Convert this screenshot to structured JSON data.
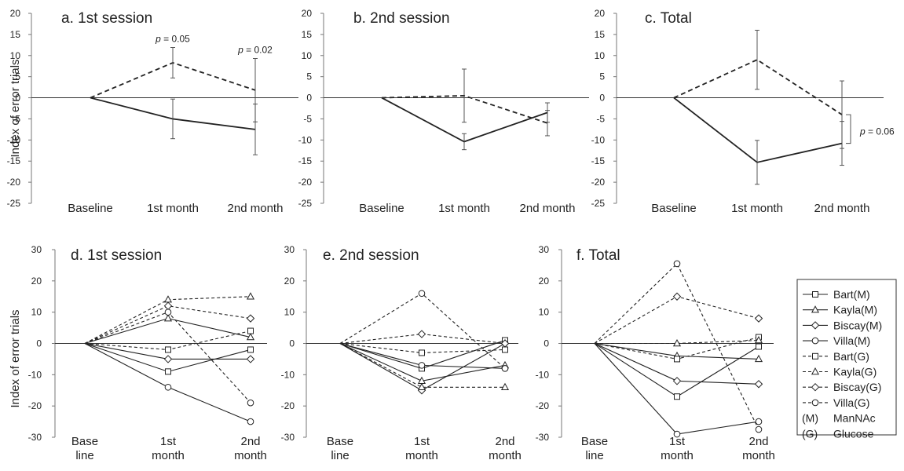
{
  "figure": {
    "ylabel": "Index of error trials",
    "legend": {
      "entries": [
        {
          "label": "Bart(M)",
          "marker": "square",
          "dash": false
        },
        {
          "label": "Kayla(M)",
          "marker": "triangle",
          "dash": false
        },
        {
          "label": "Biscay(M)",
          "marker": "diamond",
          "dash": false
        },
        {
          "label": "Villa(M)",
          "marker": "circle",
          "dash": false
        },
        {
          "label": "Bart(G)",
          "marker": "square",
          "dash": true
        },
        {
          "label": "Kayla(G)",
          "marker": "triangle",
          "dash": true
        },
        {
          "label": "Biscay(G)",
          "marker": "diamond",
          "dash": true
        },
        {
          "label": "Villa(G)",
          "marker": "circle",
          "dash": true
        }
      ],
      "notes": [
        {
          "code": "(M)",
          "text": "ManNAc"
        },
        {
          "code": "(G)",
          "text": "Glucose"
        }
      ]
    }
  },
  "chart_data": [
    {
      "panel": "a",
      "type": "line",
      "title": "a. 1st session",
      "categories": [
        "Baseline",
        "1st month",
        "2nd month"
      ],
      "ylim": [
        -25,
        20
      ],
      "yticks": [
        20,
        15,
        10,
        5,
        0,
        -5,
        -10,
        -15,
        -20,
        -25
      ],
      "series": [
        {
          "group": "ManNAc",
          "dash": false,
          "values": [
            0,
            -5,
            -7.5
          ],
          "err": [
            0,
            4.7,
            6
          ]
        },
        {
          "group": "Glucose",
          "dash": true,
          "values": [
            0,
            8.3,
            1.8
          ],
          "err": [
            0,
            3.6,
            7.5
          ]
        }
      ],
      "annotations": [
        {
          "category": "1st month",
          "value": 12.8,
          "p": "p",
          "rest": " = 0.05"
        },
        {
          "category": "2nd month",
          "value": 10.2,
          "p": "p",
          "rest": " = 0.02"
        }
      ]
    },
    {
      "panel": "b",
      "type": "line",
      "title": "b. 2nd session",
      "categories": [
        "Baseline",
        "1st month",
        "2nd month"
      ],
      "ylim": [
        -25,
        20
      ],
      "yticks": [
        20,
        15,
        10,
        5,
        0,
        -5,
        -10,
        -15,
        -20,
        -25
      ],
      "series": [
        {
          "group": "ManNAc",
          "dash": false,
          "values": [
            0,
            -10.4,
            -3.5
          ],
          "err": [
            0,
            1.9,
            2.3
          ]
        },
        {
          "group": "Glucose",
          "dash": true,
          "values": [
            0,
            0.5,
            -6
          ],
          "err": [
            0,
            6.3,
            3
          ]
        }
      ],
      "annotations": []
    },
    {
      "panel": "c",
      "type": "line",
      "title": "c. Total",
      "categories": [
        "Baseline",
        "1st month",
        "2nd month"
      ],
      "ylim": [
        -25,
        20
      ],
      "yticks": [
        20,
        15,
        10,
        5,
        0,
        -5,
        -10,
        -15,
        -20,
        -25
      ],
      "series": [
        {
          "group": "ManNAc",
          "dash": false,
          "values": [
            0,
            -15.3,
            -10.8
          ],
          "err": [
            0,
            5.2,
            5.2
          ]
        },
        {
          "group": "Glucose",
          "dash": true,
          "values": [
            0,
            9,
            -4
          ],
          "err": [
            0,
            7,
            8
          ]
        }
      ],
      "annotations": [
        {
          "category": "2nd month",
          "value": -8,
          "p": "p",
          "rest": " = 0.06",
          "bracket": [
            -4,
            -10.8
          ]
        }
      ]
    },
    {
      "panel": "d",
      "type": "line",
      "title": "d. 1st session",
      "categories": [
        "Base line",
        "1st month",
        "2nd month"
      ],
      "ylim": [
        -30,
        30
      ],
      "yticks": [
        30,
        20,
        10,
        0,
        -10,
        -20,
        -30
      ],
      "series": [
        {
          "name": "Bart(M)",
          "marker": "square",
          "dash": false,
          "values": [
            0,
            -9,
            -2
          ]
        },
        {
          "name": "Kayla(M)",
          "marker": "triangle",
          "dash": false,
          "values": [
            0,
            8,
            2
          ]
        },
        {
          "name": "Biscay(M)",
          "marker": "diamond",
          "dash": false,
          "values": [
            0,
            -5,
            -5
          ]
        },
        {
          "name": "Villa(M)",
          "marker": "circle",
          "dash": false,
          "values": [
            0,
            -14,
            -25
          ]
        },
        {
          "name": "Bart(G)",
          "marker": "square",
          "dash": true,
          "values": [
            0,
            -2,
            4
          ]
        },
        {
          "name": "Kayla(G)",
          "marker": "triangle",
          "dash": true,
          "values": [
            0,
            14,
            15
          ]
        },
        {
          "name": "Biscay(G)",
          "marker": "diamond",
          "dash": true,
          "values": [
            0,
            12,
            8
          ]
        },
        {
          "name": "Villa(G)",
          "marker": "circle",
          "dash": true,
          "values": [
            0,
            10,
            -19
          ]
        }
      ]
    },
    {
      "panel": "e",
      "type": "line",
      "title": "e. 2nd session",
      "categories": [
        "Base line",
        "1st month",
        "2nd month"
      ],
      "ylim": [
        -30,
        30
      ],
      "yticks": [
        30,
        20,
        10,
        0,
        -10,
        -20,
        -30
      ],
      "series": [
        {
          "name": "Bart(M)",
          "marker": "square",
          "dash": false,
          "values": [
            0,
            -8,
            1
          ]
        },
        {
          "name": "Kayla(M)",
          "marker": "triangle",
          "dash": false,
          "values": [
            0,
            -12,
            -7
          ]
        },
        {
          "name": "Biscay(M)",
          "marker": "diamond",
          "dash": false,
          "values": [
            0,
            -15,
            0
          ]
        },
        {
          "name": "Villa(M)",
          "marker": "circle",
          "dash": false,
          "values": [
            0,
            -7,
            -8
          ]
        },
        {
          "name": "Bart(G)",
          "marker": "square",
          "dash": true,
          "values": [
            0,
            -3,
            -2
          ]
        },
        {
          "name": "Kayla(G)",
          "marker": "triangle",
          "dash": true,
          "values": [
            0,
            -14,
            -14
          ]
        },
        {
          "name": "Biscay(G)",
          "marker": "diamond",
          "dash": true,
          "values": [
            0,
            3,
            0
          ]
        },
        {
          "name": "Villa(G)",
          "marker": "circle",
          "dash": true,
          "values": [
            0,
            16,
            -8
          ]
        }
      ]
    },
    {
      "panel": "f",
      "type": "line",
      "title": "f. Total",
      "categories": [
        "Base line",
        "1st month",
        "2nd month"
      ],
      "ylim": [
        -30,
        30
      ],
      "yticks": [
        30,
        20,
        10,
        0,
        -10,
        -20,
        -30
      ],
      "series": [
        {
          "name": "Bart(M)",
          "marker": "square",
          "dash": false,
          "values": [
            0,
            -17,
            -1
          ]
        },
        {
          "name": "Kayla(M)",
          "marker": "triangle",
          "dash": false,
          "values": [
            0,
            -4,
            -5
          ]
        },
        {
          "name": "Biscay(M)",
          "marker": "diamond",
          "dash": false,
          "values": [
            0,
            -12,
            -13
          ]
        },
        {
          "name": "Villa(M)",
          "marker": "circle",
          "dash": false,
          "values": [
            0,
            -29,
            -25
          ]
        },
        {
          "name": "Bart(G)",
          "marker": "square",
          "dash": true,
          "values": [
            0,
            -5,
            2
          ]
        },
        {
          "name": "Kayla(G)",
          "marker": "triangle",
          "dash": true,
          "values": [
            0,
            0,
            1
          ]
        },
        {
          "name": "Biscay(G)",
          "marker": "diamond",
          "dash": true,
          "values": [
            0,
            15,
            8
          ]
        },
        {
          "name": "Villa(G)",
          "marker": "circle",
          "dash": true,
          "values": [
            0,
            25.5,
            -27.5
          ]
        }
      ]
    }
  ]
}
